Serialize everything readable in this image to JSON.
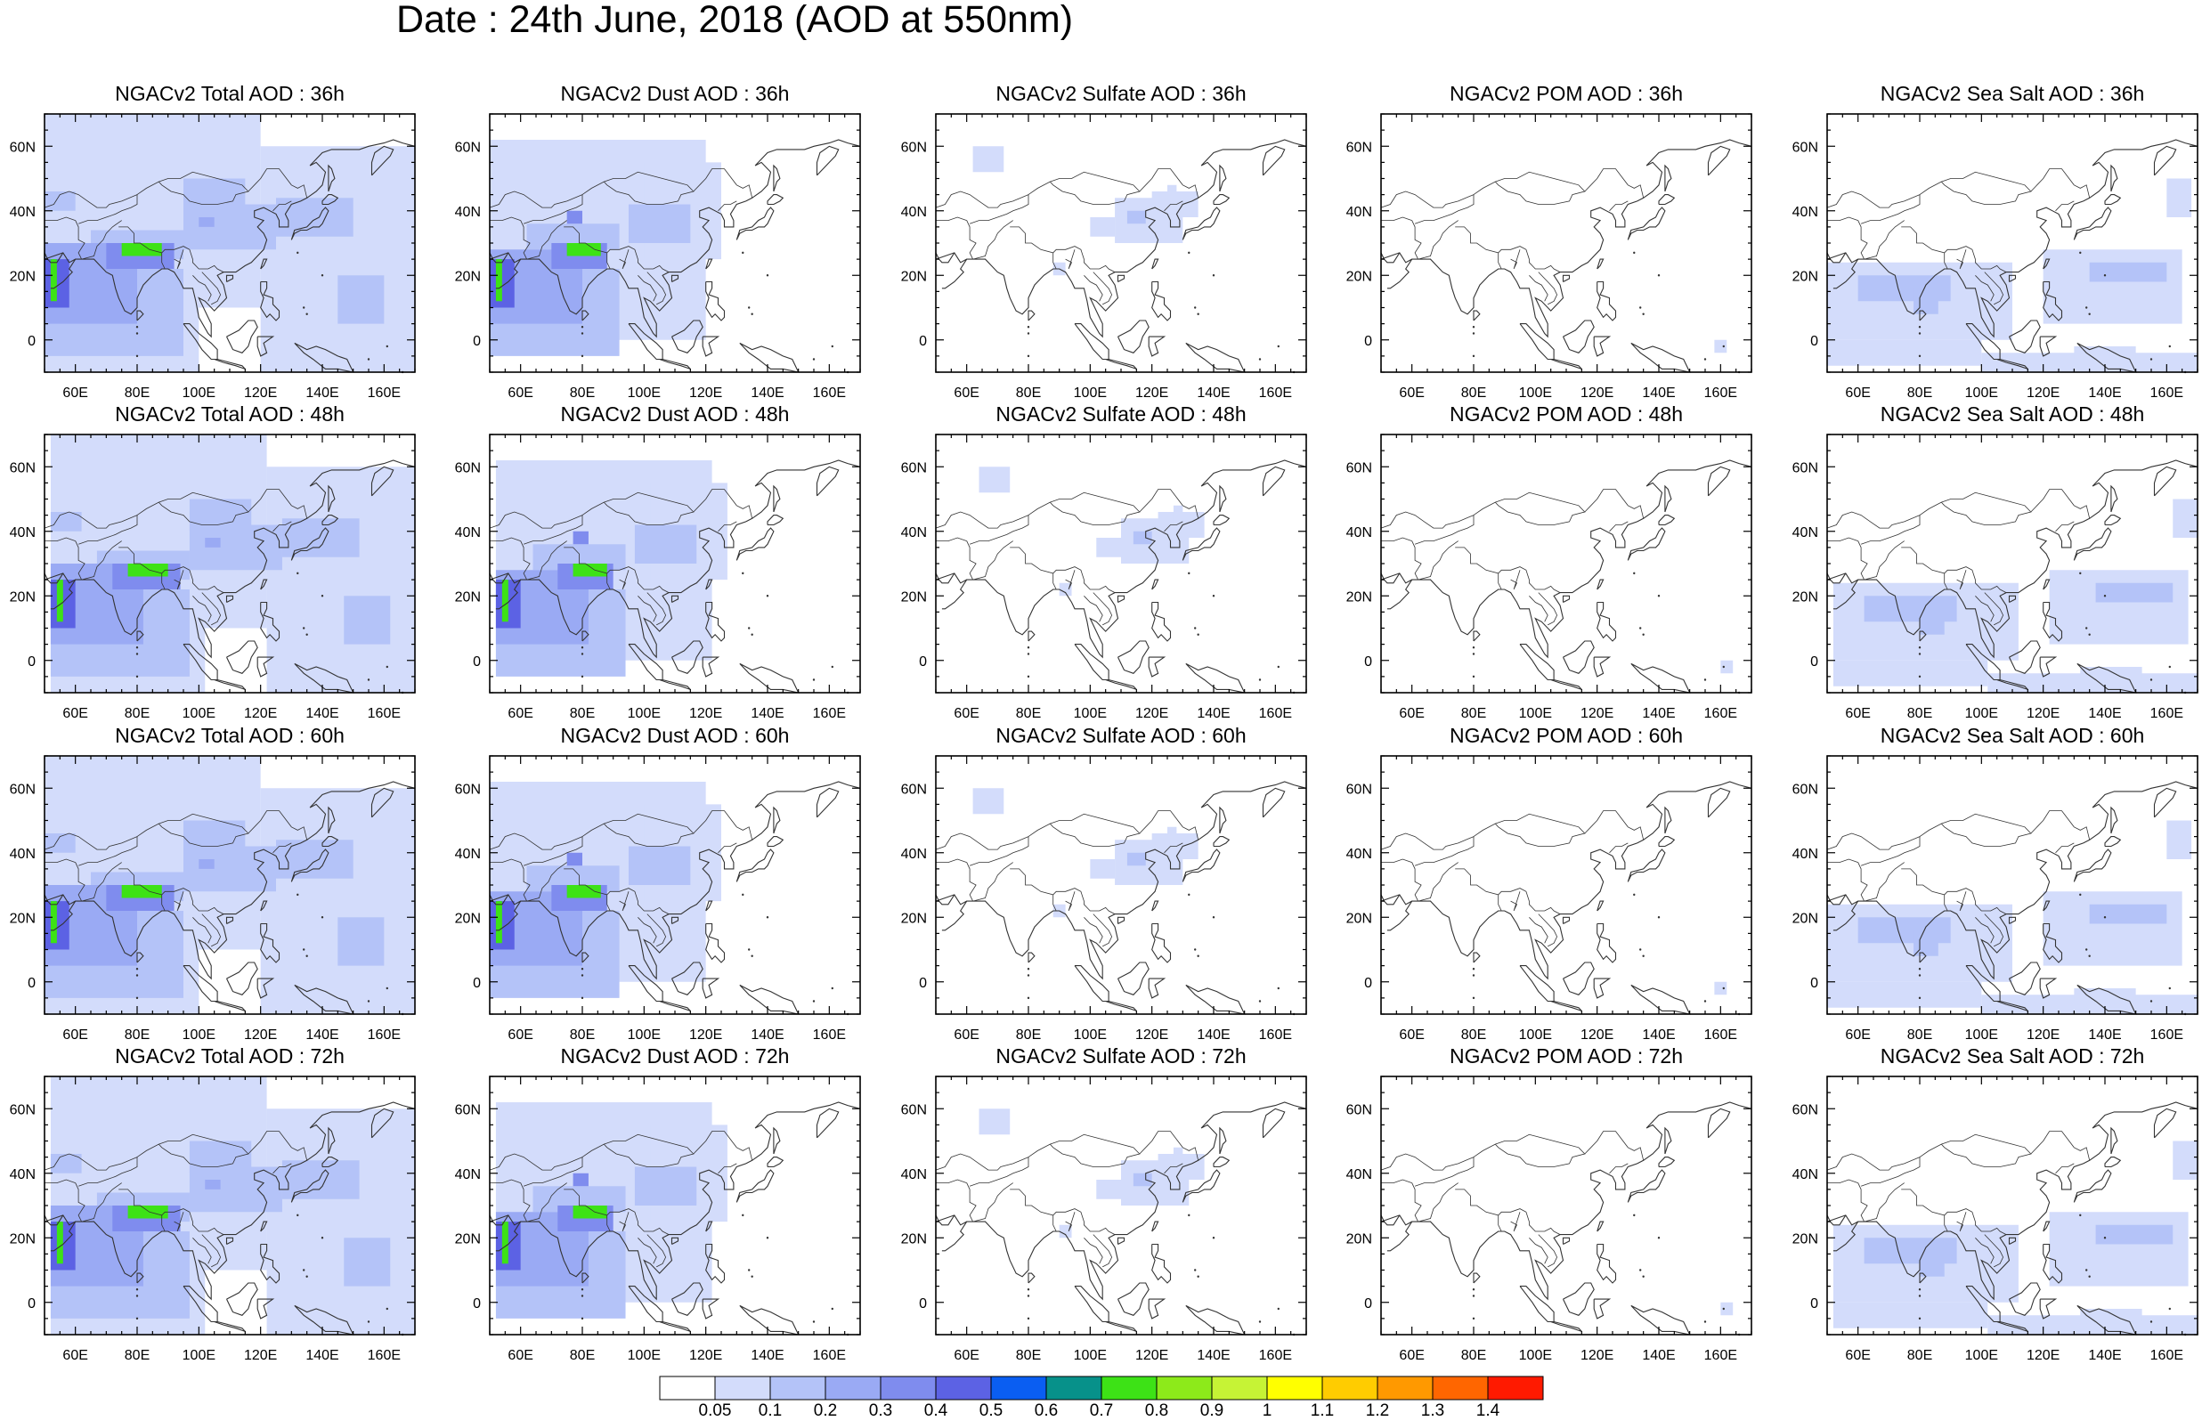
{
  "title": "Date : 24th June, 2018 (AOD at 550nm)",
  "lat_ticks": [
    "60N",
    "40N",
    "20N",
    "0"
  ],
  "lon_ticks": [
    "60E",
    "80E",
    "100E",
    "120E",
    "140E",
    "160E"
  ],
  "panels": [
    [
      "NGACv2 Total AOD : 36h",
      "NGACv2 Dust AOD : 36h",
      "NGACv2 Sulfate AOD : 36h",
      "NGACv2 POM AOD : 36h",
      "NGACv2 Sea Salt AOD : 36h"
    ],
    [
      "NGACv2 Total AOD : 48h",
      "NGACv2 Dust AOD : 48h",
      "NGACv2 Sulfate AOD : 48h",
      "NGACv2 POM AOD : 48h",
      "NGACv2 Sea Salt AOD : 48h"
    ],
    [
      "NGACv2 Total AOD : 60h",
      "NGACv2 Dust AOD : 60h",
      "NGACv2 Sulfate AOD : 60h",
      "NGACv2 POM AOD : 60h",
      "NGACv2 Sea Salt AOD : 60h"
    ],
    [
      "NGACv2 Total AOD : 72h",
      "NGACv2 Dust AOD : 72h",
      "NGACv2 Sulfate AOD : 72h",
      "NGACv2 POM AOD : 72h",
      "NGACv2 Sea Salt  AOD : 72h"
    ]
  ],
  "colorbar": {
    "labels": [
      "0.05",
      "0.1",
      "0.2",
      "0.3",
      "0.4",
      "0.5",
      "0.6",
      "0.7",
      "0.8",
      "0.9",
      "1",
      "1.1",
      "1.2",
      "1.3",
      "1.4"
    ],
    "colors": [
      "#ffffff",
      "#d3dcfb",
      "#b4c3f8",
      "#9aaaf4",
      "#7f8cee",
      "#5c62e4",
      "#0a5ef2",
      "#07918a",
      "#3de216",
      "#8dea1a",
      "#c6f335",
      "#ffff00",
      "#ffcc00",
      "#ff9900",
      "#ff6600",
      "#ff1a00"
    ]
  }
}
